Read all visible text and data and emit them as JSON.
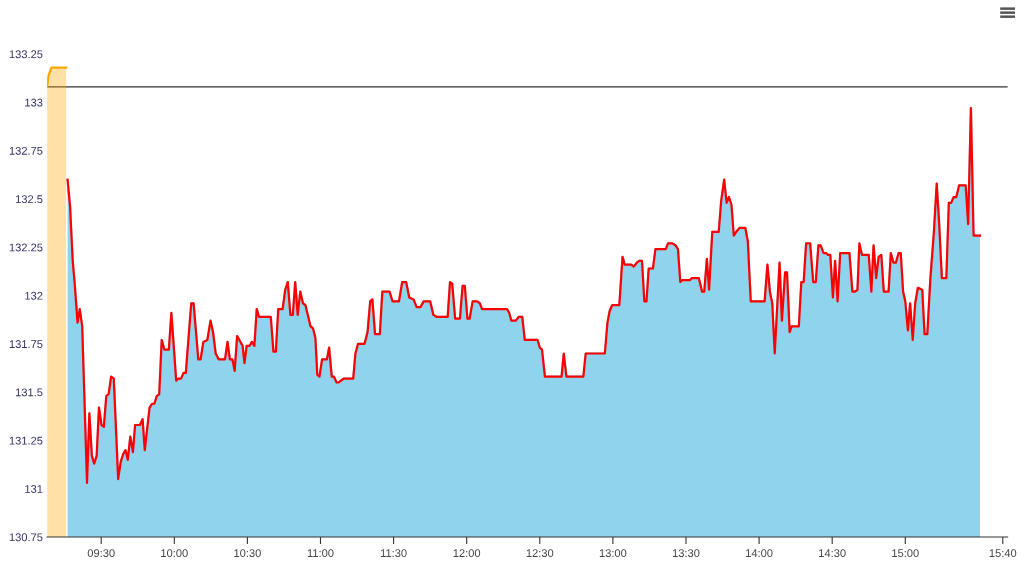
{
  "chart_data": {
    "type": "area",
    "xlim": [
      9.13,
      15.7
    ],
    "xticks": [
      {
        "value": 9.5,
        "label": "09:30"
      },
      {
        "value": 10.0,
        "label": "10:00"
      },
      {
        "value": 10.5,
        "label": "10:30"
      },
      {
        "value": 11.0,
        "label": "11:00"
      },
      {
        "value": 11.5,
        "label": "11:30"
      },
      {
        "value": 12.0,
        "label": "12:00"
      },
      {
        "value": 12.5,
        "label": "12:30"
      },
      {
        "value": 13.0,
        "label": "13:00"
      },
      {
        "value": 13.5,
        "label": "13:30"
      },
      {
        "value": 14.0,
        "label": "14:00"
      },
      {
        "value": 14.5,
        "label": "14:30"
      },
      {
        "value": 15.0,
        "label": "15:00"
      },
      {
        "value": 15.667,
        "label": "15:40"
      }
    ],
    "ylim": [
      130.75,
      133.25
    ],
    "yticks": [
      130.75,
      131,
      131.25,
      131.5,
      131.75,
      132,
      132.25,
      132.5,
      132.75,
      133,
      133.25
    ],
    "grid": false,
    "ref_lines": [
      {
        "axis": "y",
        "value": 133.08,
        "color": "#333333"
      }
    ],
    "series": [
      {
        "color": "#ffa500",
        "x": [
          9.13,
          9.14,
          9.16,
          9.26
        ],
        "values": [
          133.08,
          133.14,
          133.18,
          133.18
        ]
      },
      {
        "color": "#8fd4ec",
        "x": [
          9.27,
          9.287,
          9.305,
          9.32,
          9.338,
          9.353,
          9.37,
          9.403,
          9.419,
          9.436,
          9.452,
          9.469,
          9.485,
          9.502,
          9.518,
          9.535,
          9.551,
          9.568,
          9.586,
          9.616,
          9.634,
          9.651,
          9.666,
          9.682,
          9.699,
          9.717,
          9.732,
          9.765,
          9.783,
          9.798,
          9.831,
          9.849,
          9.864,
          9.88,
          9.897,
          9.914,
          9.932,
          9.963,
          9.98,
          10.013,
          10.028,
          10.046,
          10.064,
          10.079,
          10.116,
          10.132,
          10.164,
          10.18,
          10.199,
          10.226,
          10.248,
          10.265,
          10.283,
          10.303,
          10.347,
          10.364,
          10.38,
          10.397,
          10.413,
          10.43,
          10.467,
          10.48,
          10.495,
          10.515,
          10.531,
          10.548,
          10.564,
          10.579,
          10.66,
          10.678,
          10.695,
          10.711,
          10.741,
          10.759,
          10.776,
          10.794,
          10.811,
          10.827,
          10.844,
          10.862,
          10.88,
          10.897,
          10.932,
          10.949,
          10.965,
          10.978,
          10.993,
          11.011,
          11.044,
          11.059,
          11.077,
          11.092,
          11.11,
          11.125,
          11.158,
          11.224,
          11.239,
          11.257,
          11.301,
          11.322,
          11.34,
          11.355,
          11.373,
          11.406,
          11.423,
          11.472,
          11.493,
          11.537,
          11.559,
          11.586,
          11.607,
          11.636,
          11.658,
          11.684,
          11.706,
          11.75,
          11.772,
          11.794,
          11.87,
          11.886,
          11.901,
          11.921,
          11.954,
          11.972,
          11.987,
          12.005,
          12.02,
          12.041,
          12.072,
          12.09,
          12.105,
          12.276,
          12.291,
          12.305,
          12.336,
          12.357,
          12.38,
          12.397,
          12.485,
          12.5,
          12.515,
          12.535,
          12.649,
          12.664,
          12.682,
          12.798,
          12.814,
          12.945,
          12.963,
          12.978,
          12.995,
          13.044,
          13.066,
          13.081,
          13.125,
          13.143,
          13.164,
          13.18,
          13.199,
          13.215,
          13.23,
          13.245,
          13.274,
          13.291,
          13.347,
          13.362,
          13.377,
          13.406,
          13.428,
          13.445,
          13.461,
          13.476,
          13.526,
          13.541,
          13.588,
          13.61,
          13.625,
          13.643,
          13.658,
          13.68,
          13.724,
          13.741,
          13.761,
          13.778,
          13.794,
          13.811,
          13.827,
          13.844,
          13.866,
          13.906,
          13.923,
          13.943,
          14.038,
          14.057,
          14.074,
          14.09,
          14.107,
          14.14,
          14.156,
          14.178,
          14.191,
          14.209,
          14.222,
          14.272,
          14.289,
          14.305,
          14.322,
          14.349,
          14.37,
          14.388,
          14.406,
          14.421,
          14.441,
          14.458,
          14.472,
          14.487,
          14.505,
          14.52,
          14.537,
          14.555,
          14.618,
          14.638,
          14.656,
          14.673,
          14.686,
          14.704,
          14.75,
          14.768,
          14.783,
          14.801,
          14.818,
          14.836,
          14.853,
          14.886,
          14.901,
          14.919,
          14.936,
          14.954,
          14.969,
          14.985,
          15.0,
          15.018,
          15.033,
          15.051,
          15.068,
          15.086,
          15.116,
          15.132,
          15.151,
          15.171,
          15.195,
          15.215,
          15.232,
          15.25,
          15.281,
          15.298,
          15.314,
          15.331,
          15.349,
          15.368,
          15.413,
          15.43,
          15.449,
          15.467,
          15.511
        ],
        "values": [
          132.6,
          132.46,
          132.18,
          132.05,
          131.86,
          131.93,
          131.84,
          131.03,
          131.39,
          131.17,
          131.13,
          131.17,
          131.42,
          131.33,
          131.32,
          131.48,
          131.49,
          131.58,
          131.57,
          131.05,
          131.14,
          131.18,
          131.2,
          131.15,
          131.27,
          131.19,
          131.33,
          131.33,
          131.36,
          131.2,
          131.42,
          131.44,
          131.44,
          131.48,
          131.49,
          131.77,
          131.72,
          131.72,
          131.91,
          131.56,
          131.57,
          131.57,
          131.6,
          131.6,
          131.96,
          131.96,
          131.67,
          131.67,
          131.76,
          131.77,
          131.87,
          131.81,
          131.7,
          131.67,
          131.67,
          131.76,
          131.67,
          131.67,
          131.61,
          131.79,
          131.74,
          131.65,
          131.74,
          131.74,
          131.76,
          131.74,
          131.93,
          131.89,
          131.89,
          131.71,
          131.71,
          131.93,
          131.93,
          132.03,
          132.07,
          131.9,
          131.9,
          132.07,
          131.9,
          132.02,
          131.96,
          131.95,
          131.84,
          131.83,
          131.78,
          131.59,
          131.58,
          131.67,
          131.67,
          131.73,
          131.58,
          131.58,
          131.55,
          131.55,
          131.57,
          131.57,
          131.7,
          131.75,
          131.75,
          131.81,
          131.97,
          131.98,
          131.8,
          131.8,
          132.02,
          132.02,
          131.97,
          131.97,
          132.07,
          132.07,
          131.99,
          131.98,
          131.94,
          131.94,
          131.97,
          131.97,
          131.9,
          131.89,
          131.89,
          132.07,
          132.06,
          131.88,
          131.88,
          132.05,
          132.05,
          131.88,
          131.88,
          131.97,
          131.97,
          131.96,
          131.93,
          131.93,
          131.91,
          131.87,
          131.87,
          131.89,
          131.89,
          131.77,
          131.77,
          131.73,
          131.72,
          131.58,
          131.58,
          131.7,
          131.58,
          131.58,
          131.7,
          131.7,
          131.86,
          131.92,
          131.95,
          131.95,
          132.2,
          132.16,
          132.16,
          132.15,
          132.17,
          132.18,
          132.18,
          131.97,
          131.97,
          132.14,
          132.14,
          132.24,
          132.24,
          132.24,
          132.27,
          132.27,
          132.26,
          132.24,
          132.07,
          132.08,
          132.08,
          132.09,
          132.09,
          132.02,
          132.02,
          132.19,
          132.03,
          132.33,
          132.33,
          132.49,
          132.6,
          132.48,
          132.51,
          132.47,
          132.31,
          132.33,
          132.35,
          132.35,
          132.28,
          131.97,
          131.97,
          132.16,
          132.02,
          131.96,
          131.7,
          132.17,
          131.87,
          132.12,
          132.12,
          131.81,
          131.84,
          131.84,
          132.07,
          132.07,
          132.27,
          132.27,
          132.07,
          132.07,
          132.26,
          132.26,
          132.22,
          132.22,
          132.21,
          132.21,
          131.99,
          132.18,
          131.97,
          132.22,
          132.22,
          132.02,
          132.02,
          132.03,
          132.27,
          132.21,
          132.21,
          132.02,
          132.26,
          132.09,
          132.2,
          132.21,
          132.02,
          132.02,
          132.22,
          132.17,
          132.17,
          132.22,
          132.22,
          132.02,
          131.97,
          131.82,
          131.96,
          131.77,
          131.96,
          132.04,
          132.03,
          131.8,
          131.8,
          132.08,
          132.32,
          132.58,
          132.37,
          132.09,
          132.09,
          132.48,
          132.48,
          132.51,
          132.51,
          132.57,
          132.57,
          132.37,
          132.97,
          132.31,
          132.31
        ]
      },
      {
        "type": "line",
        "color": "#ff0000",
        "x": [
          9.27,
          9.287,
          9.305,
          9.32,
          9.338,
          9.353,
          9.37,
          9.403,
          9.419,
          9.436,
          9.452,
          9.469,
          9.485,
          9.502,
          9.518,
          9.535,
          9.551,
          9.568,
          9.586,
          9.616,
          9.634,
          9.651,
          9.666,
          9.682,
          9.699,
          9.717,
          9.732,
          9.765,
          9.783,
          9.798,
          9.831,
          9.849,
          9.864,
          9.88,
          9.897,
          9.914,
          9.932,
          9.963,
          9.98,
          10.013,
          10.028,
          10.046,
          10.064,
          10.079,
          10.116,
          10.132,
          10.164,
          10.18,
          10.199,
          10.226,
          10.248,
          10.265,
          10.283,
          10.303,
          10.347,
          10.364,
          10.38,
          10.397,
          10.413,
          10.43,
          10.467,
          10.48,
          10.495,
          10.515,
          10.531,
          10.548,
          10.564,
          10.579,
          10.66,
          10.678,
          10.695,
          10.711,
          10.741,
          10.759,
          10.776,
          10.794,
          10.811,
          10.827,
          10.844,
          10.862,
          10.88,
          10.897,
          10.932,
          10.949,
          10.965,
          10.978,
          10.993,
          11.011,
          11.044,
          11.059,
          11.077,
          11.092,
          11.11,
          11.125,
          11.158,
          11.224,
          11.239,
          11.257,
          11.301,
          11.322,
          11.34,
          11.355,
          11.373,
          11.406,
          11.423,
          11.472,
          11.493,
          11.537,
          11.559,
          11.586,
          11.607,
          11.636,
          11.658,
          11.684,
          11.706,
          11.75,
          11.772,
          11.794,
          11.87,
          11.886,
          11.901,
          11.921,
          11.954,
          11.972,
          11.987,
          12.005,
          12.02,
          12.041,
          12.072,
          12.09,
          12.105,
          12.276,
          12.291,
          12.305,
          12.336,
          12.357,
          12.38,
          12.397,
          12.485,
          12.5,
          12.515,
          12.535,
          12.649,
          12.664,
          12.682,
          12.798,
          12.814,
          12.945,
          12.963,
          12.978,
          12.995,
          13.044,
          13.066,
          13.081,
          13.125,
          13.143,
          13.164,
          13.18,
          13.199,
          13.215,
          13.23,
          13.245,
          13.274,
          13.291,
          13.347,
          13.362,
          13.377,
          13.406,
          13.428,
          13.445,
          13.461,
          13.476,
          13.526,
          13.541,
          13.588,
          13.61,
          13.625,
          13.643,
          13.658,
          13.68,
          13.724,
          13.741,
          13.761,
          13.778,
          13.794,
          13.811,
          13.827,
          13.844,
          13.866,
          13.906,
          13.923,
          13.943,
          14.038,
          14.057,
          14.074,
          14.09,
          14.107,
          14.14,
          14.156,
          14.178,
          14.191,
          14.209,
          14.222,
          14.272,
          14.289,
          14.305,
          14.322,
          14.349,
          14.37,
          14.388,
          14.406,
          14.421,
          14.441,
          14.458,
          14.472,
          14.487,
          14.505,
          14.52,
          14.537,
          14.555,
          14.618,
          14.638,
          14.656,
          14.673,
          14.686,
          14.704,
          14.75,
          14.768,
          14.783,
          14.801,
          14.818,
          14.836,
          14.853,
          14.886,
          14.901,
          14.919,
          14.936,
          14.954,
          14.969,
          14.985,
          15.0,
          15.018,
          15.033,
          15.051,
          15.068,
          15.086,
          15.116,
          15.132,
          15.151,
          15.171,
          15.195,
          15.215,
          15.232,
          15.25,
          15.281,
          15.298,
          15.314,
          15.331,
          15.349,
          15.368,
          15.413,
          15.43,
          15.449,
          15.467,
          15.511
        ],
        "values": [
          132.6,
          132.46,
          132.18,
          132.05,
          131.86,
          131.93,
          131.84,
          131.03,
          131.39,
          131.17,
          131.13,
          131.17,
          131.42,
          131.33,
          131.32,
          131.48,
          131.49,
          131.58,
          131.57,
          131.05,
          131.14,
          131.18,
          131.2,
          131.15,
          131.27,
          131.19,
          131.33,
          131.33,
          131.36,
          131.2,
          131.42,
          131.44,
          131.44,
          131.48,
          131.49,
          131.77,
          131.72,
          131.72,
          131.91,
          131.56,
          131.57,
          131.57,
          131.6,
          131.6,
          131.96,
          131.96,
          131.67,
          131.67,
          131.76,
          131.77,
          131.87,
          131.81,
          131.7,
          131.67,
          131.67,
          131.76,
          131.67,
          131.67,
          131.61,
          131.79,
          131.74,
          131.65,
          131.74,
          131.74,
          131.76,
          131.74,
          131.93,
          131.89,
          131.89,
          131.71,
          131.71,
          131.93,
          131.93,
          132.03,
          132.07,
          131.9,
          131.9,
          132.07,
          131.9,
          132.02,
          131.96,
          131.95,
          131.84,
          131.83,
          131.78,
          131.59,
          131.58,
          131.67,
          131.67,
          131.73,
          131.58,
          131.58,
          131.55,
          131.55,
          131.57,
          131.57,
          131.7,
          131.75,
          131.75,
          131.81,
          131.97,
          131.98,
          131.8,
          131.8,
          132.02,
          132.02,
          131.97,
          131.97,
          132.07,
          132.07,
          131.99,
          131.98,
          131.94,
          131.94,
          131.97,
          131.97,
          131.9,
          131.89,
          131.89,
          132.07,
          132.06,
          131.88,
          131.88,
          132.05,
          132.05,
          131.88,
          131.88,
          131.97,
          131.97,
          131.96,
          131.93,
          131.93,
          131.91,
          131.87,
          131.87,
          131.89,
          131.89,
          131.77,
          131.77,
          131.73,
          131.72,
          131.58,
          131.58,
          131.7,
          131.58,
          131.58,
          131.7,
          131.7,
          131.86,
          131.92,
          131.95,
          131.95,
          132.2,
          132.16,
          132.16,
          132.15,
          132.17,
          132.18,
          132.18,
          131.97,
          131.97,
          132.14,
          132.14,
          132.24,
          132.24,
          132.24,
          132.27,
          132.27,
          132.26,
          132.24,
          132.07,
          132.08,
          132.08,
          132.09,
          132.09,
          132.02,
          132.02,
          132.19,
          132.03,
          132.33,
          132.33,
          132.49,
          132.6,
          132.48,
          132.51,
          132.47,
          132.31,
          132.33,
          132.35,
          132.35,
          132.28,
          131.97,
          131.97,
          132.16,
          132.02,
          131.96,
          131.7,
          132.17,
          131.87,
          132.12,
          132.12,
          131.81,
          131.84,
          131.84,
          132.07,
          132.07,
          132.27,
          132.27,
          132.07,
          132.07,
          132.26,
          132.26,
          132.22,
          132.22,
          132.21,
          132.21,
          131.99,
          132.18,
          131.97,
          132.22,
          132.22,
          132.02,
          132.02,
          132.03,
          132.27,
          132.21,
          132.21,
          132.02,
          132.26,
          132.09,
          132.2,
          132.21,
          132.02,
          132.02,
          132.22,
          132.17,
          132.17,
          132.22,
          132.22,
          132.02,
          131.97,
          131.82,
          131.96,
          131.77,
          131.96,
          132.04,
          132.03,
          131.8,
          131.8,
          132.08,
          132.32,
          132.58,
          132.37,
          132.09,
          132.09,
          132.48,
          132.48,
          132.51,
          132.51,
          132.57,
          132.57,
          132.37,
          132.97,
          132.31,
          132.31
        ]
      }
    ]
  }
}
